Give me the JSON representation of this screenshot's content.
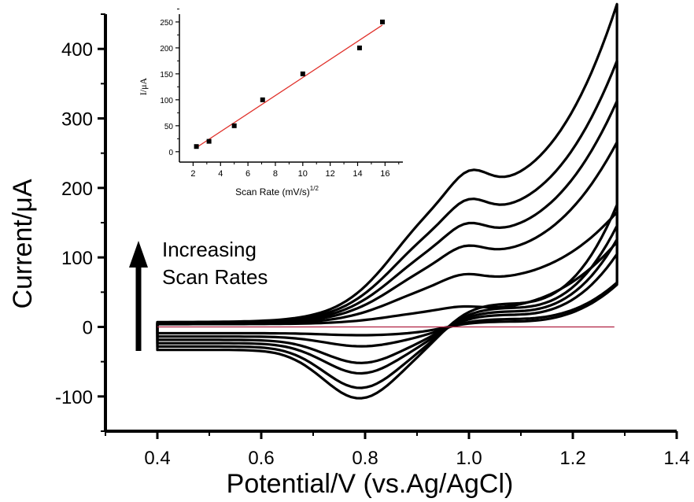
{
  "chart_data": [
    {
      "type": "line",
      "xlabel": "Potential/V (vs.Ag/AgCl)",
      "ylabel": "Current/μA",
      "xlim": [
        0.3,
        1.4
      ],
      "ylim": [
        -150,
        450
      ],
      "xticks": [
        "0.4",
        "0.6",
        "0.8",
        "1.0",
        "1.2",
        "1.4"
      ],
      "yticks": [
        "-100",
        "0",
        "100",
        "200",
        "300",
        "400"
      ],
      "annotation": [
        "Increasing",
        "Scan Rates"
      ],
      "line_color": "#000000",
      "baseline_color": "#b02040",
      "baseline_x": [
        0.4,
        1.28
      ],
      "series": [
        {
          "peak_anodic": 30,
          "peak_cathodic": -12,
          "end_current": 125
        },
        {
          "peak_anodic": 78,
          "peak_cathodic": -28,
          "end_current": 148
        },
        {
          "peak_anodic": 120,
          "peak_cathodic": -52,
          "end_current": 228
        },
        {
          "peak_anodic": 153,
          "peak_cathodic": -67,
          "end_current": 272
        },
        {
          "peak_anodic": 188,
          "peak_cathodic": -88,
          "end_current": 314
        },
        {
          "peak_anodic": 230,
          "peak_cathodic": -103,
          "end_current": 376
        }
      ]
    },
    {
      "type": "scatter",
      "xlabel": "Scan Rate (mV/s)",
      "xlabel_sup": "1/2",
      "ylabel": "I/μA",
      "xlim": [
        1,
        17.3
      ],
      "ylim": [
        -20,
        265
      ],
      "xticks": [
        "2",
        "4",
        "6",
        "8",
        "10",
        "12",
        "14",
        "16"
      ],
      "yticks": [
        "0",
        "50",
        "100",
        "150",
        "200",
        "250"
      ],
      "x": [
        2.24,
        3.16,
        5.0,
        7.07,
        10.0,
        14.14,
        15.81
      ],
      "y": [
        10,
        20,
        50,
        100,
        150,
        200,
        250
      ],
      "fit": {
        "x": [
          2.24,
          15.81
        ],
        "y": [
          8,
          244
        ]
      },
      "fit_color": "#e0302a",
      "marker_color": "#000000"
    }
  ]
}
